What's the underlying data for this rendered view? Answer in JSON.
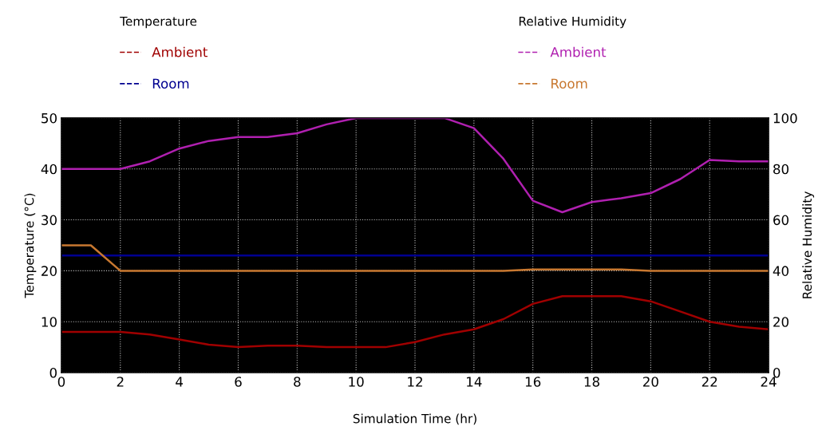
{
  "chart_data": {
    "type": "line",
    "xlabel": "Simulation Time (hr)",
    "ylabel": "Temperature (°C)",
    "y2label": "Relative Humidity",
    "annotations": [
      "Temperature",
      "Relative Humidity"
    ],
    "x": [
      0,
      1,
      2,
      3,
      4,
      5,
      6,
      7,
      8,
      9,
      10,
      11,
      12,
      13,
      14,
      15,
      16,
      17,
      18,
      19,
      20,
      21,
      22,
      23,
      24
    ],
    "series": [
      {
        "name": "Ambient",
        "color": "#a00000",
        "values": [
          8,
          8,
          8,
          7.5,
          6.5,
          5.5,
          5,
          5.3,
          5.3,
          5,
          5,
          5,
          6,
          7.5,
          8.5,
          10.5,
          13.5,
          15,
          15,
          15,
          14,
          12,
          10,
          9,
          8.5
        ]
      },
      {
        "name": "Room",
        "color": "#000090",
        "values": [
          23,
          23,
          23,
          23,
          23,
          23,
          23,
          23,
          23,
          23,
          23,
          23,
          23,
          23,
          23,
          23,
          23,
          23,
          23,
          23,
          23,
          23,
          23,
          23,
          23
        ]
      },
      {
        "name": "Ambient",
        "color": "#b020b0",
        "axis": "y2",
        "values": [
          80,
          80,
          80,
          83,
          88,
          91,
          92.5,
          92.5,
          94,
          97.5,
          100,
          100,
          100,
          100,
          96,
          84,
          67.5,
          63,
          67,
          68.5,
          70.5,
          76,
          83.5,
          83,
          83
        ]
      },
      {
        "name": "Room",
        "color": "#c87830",
        "axis": "y2",
        "values": [
          50,
          50,
          40,
          40,
          40,
          40,
          40,
          40,
          40,
          40,
          40,
          40,
          40,
          40,
          40,
          40,
          40.5,
          40.5,
          40.5,
          40.5,
          40,
          40,
          40,
          40,
          40
        ]
      }
    ],
    "xlim": [
      0,
      24
    ],
    "xticks": [
      0,
      2,
      4,
      6,
      8,
      10,
      12,
      14,
      16,
      18,
      20,
      22,
      24
    ],
    "ylim": [
      0,
      50
    ],
    "yticks": [
      0,
      10,
      20,
      30,
      40,
      50
    ],
    "y2lim": [
      0,
      100
    ],
    "y2ticks": [
      0,
      20,
      40,
      60,
      80,
      100
    ],
    "grid": true,
    "legend": "top",
    "marker": "none",
    "line_style": "solid"
  }
}
